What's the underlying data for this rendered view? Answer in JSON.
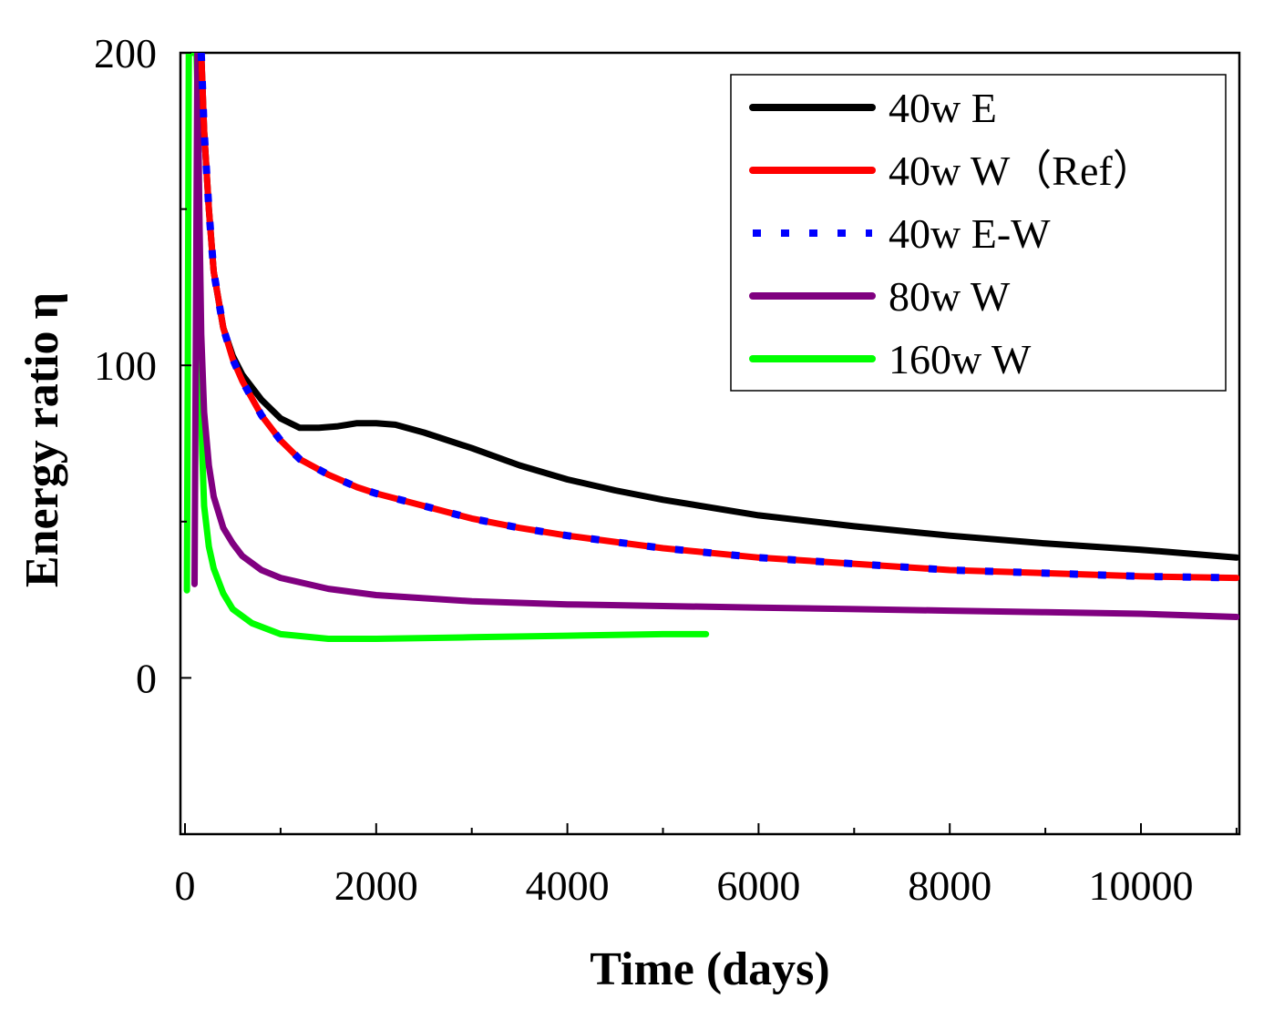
{
  "chart_data": {
    "type": "line",
    "title": "",
    "xlabel": "Time (days)",
    "ylabel": "Energy ratio η",
    "xlim": [
      0,
      11000
    ],
    "ylim": [
      -50,
      200
    ],
    "xticks": [
      0,
      2000,
      4000,
      6000,
      8000,
      10000
    ],
    "xtick_labels": [
      "0",
      "2000",
      "4000",
      "6000",
      "8000",
      "10000"
    ],
    "yticks": [
      0,
      100,
      200
    ],
    "ytick_labels": [
      "0",
      "100",
      "200"
    ],
    "grid": false,
    "legend_position": "top-right",
    "series": [
      {
        "name": "40w E",
        "color": "#000000",
        "style": "solid",
        "x": [
          170,
          200,
          250,
          300,
          400,
          500,
          600,
          800,
          1000,
          1200,
          1400,
          1600,
          1800,
          2000,
          2200,
          2500,
          3000,
          3500,
          4000,
          4500,
          5000,
          6000,
          7000,
          8000,
          9000,
          10000,
          11000
        ],
        "y": [
          200,
          175,
          150,
          130,
          112,
          103,
          97,
          89,
          83,
          80,
          80,
          80.5,
          81.5,
          81.5,
          81,
          78.5,
          73.5,
          68,
          63.5,
          60,
          57,
          52,
          48.5,
          45.5,
          43,
          41,
          38.5
        ]
      },
      {
        "name": "40w W（Ref）",
        "color": "#ff0000",
        "style": "solid",
        "x": [
          170,
          200,
          250,
          300,
          400,
          500,
          600,
          800,
          1000,
          1200,
          1500,
          1800,
          2000,
          2500,
          3000,
          3500,
          4000,
          4500,
          5000,
          6000,
          7000,
          8000,
          9000,
          10000,
          11000
        ],
        "y": [
          200,
          175,
          150,
          130,
          112,
          102,
          95,
          84,
          76,
          70,
          65,
          61,
          59,
          55,
          51,
          48,
          45.5,
          43.5,
          41.5,
          38.5,
          36.5,
          34.5,
          33.5,
          32.5,
          32
        ]
      },
      {
        "name": "40w E-W",
        "color": "#0000ff",
        "style": "dotted",
        "x": [
          170,
          200,
          250,
          300,
          400,
          500,
          600,
          800,
          1000,
          1200,
          1500,
          1800,
          2000,
          2500,
          3000,
          3500,
          4000,
          4500,
          5000,
          6000,
          7000,
          8000,
          9000,
          10000,
          11000
        ],
        "y": [
          200,
          175,
          150,
          130,
          112,
          102,
          95,
          84,
          76,
          70,
          65,
          61,
          59,
          55,
          51,
          48,
          45.5,
          43.5,
          41.5,
          38.5,
          36.5,
          34.5,
          33.5,
          32.5,
          32
        ]
      },
      {
        "name": "80w W",
        "color": "#800080",
        "style": "solid",
        "x": [
          100,
          115,
          130,
          150,
          170,
          200,
          250,
          300,
          400,
          500,
          600,
          800,
          1000,
          1500,
          2000,
          3000,
          4000,
          5000,
          6000,
          7000,
          8000,
          9000,
          10000,
          11000
        ],
        "y": [
          30,
          120,
          200,
          150,
          110,
          85,
          68,
          58,
          48,
          43,
          39,
          34.5,
          32,
          28.5,
          26.5,
          24.5,
          23.5,
          23,
          22.5,
          22,
          21.5,
          21,
          20.5,
          19.5
        ]
      },
      {
        "name": "160w W",
        "color": "#00ff00",
        "style": "solid",
        "x": [
          20,
          30,
          40,
          55,
          70,
          90,
          100,
          110,
          120,
          130,
          140,
          160,
          180,
          200,
          250,
          300,
          400,
          500,
          700,
          1000,
          1500,
          2000,
          3000,
          4000,
          5000,
          5450
        ],
        "y": [
          28,
          100,
          200,
          200,
          200,
          200,
          200,
          200,
          200,
          190,
          150,
          100,
          72,
          55,
          42,
          35,
          27,
          22,
          17.5,
          14,
          12.5,
          12.5,
          13,
          13.5,
          14,
          14
        ]
      }
    ]
  }
}
